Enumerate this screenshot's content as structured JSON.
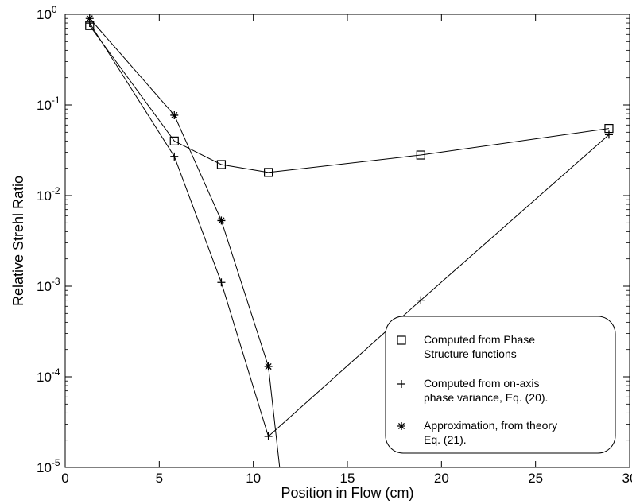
{
  "chart_data": {
    "type": "line",
    "title": "",
    "xlabel": "Position in Flow (cm)",
    "ylabel": "Relative Strehl Ratio",
    "xlim": [
      0,
      30
    ],
    "ylim": [
      1e-05,
      1
    ],
    "yscale": "log",
    "xticks": [
      {
        "value": 0,
        "label": "0"
      },
      {
        "value": 5,
        "label": "5"
      },
      {
        "value": 10,
        "label": "10"
      },
      {
        "value": 15,
        "label": "15"
      },
      {
        "value": 20,
        "label": "20"
      },
      {
        "value": 25,
        "label": "25"
      },
      {
        "value": 30,
        "label": "30"
      }
    ],
    "yticks": [
      {
        "value": 1,
        "base": "10",
        "exp": "0"
      },
      {
        "value": 0.1,
        "base": "10",
        "exp": "-1"
      },
      {
        "value": 0.01,
        "base": "10",
        "exp": "-2"
      },
      {
        "value": 0.001,
        "base": "10",
        "exp": "-3"
      },
      {
        "value": 0.0001,
        "base": "10",
        "exp": "-4"
      },
      {
        "value": 1e-05,
        "base": "10",
        "exp": "-5"
      }
    ],
    "grid": false,
    "legend_position": "bottom-right",
    "series": [
      {
        "name": "Computed from Phase Structure functions",
        "legend_lines": [
          "Computed from Phase",
          "Structure functions"
        ],
        "marker": "square",
        "x": [
          1.3,
          5.8,
          8.3,
          10.8,
          18.9,
          28.9
        ],
        "y": [
          0.75,
          0.04,
          0.022,
          0.018,
          0.028,
          0.055
        ]
      },
      {
        "name": "Computed from on-axis phase variance, Eq. (20).",
        "legend_lines": [
          "Computed from on-axis",
          "phase variance, Eq. (20)."
        ],
        "marker": "plus",
        "x": [
          1.3,
          5.8,
          8.3,
          10.8,
          18.9,
          28.9
        ],
        "y": [
          0.8,
          0.027,
          0.0011,
          2.2e-05,
          0.0007,
          0.047
        ]
      },
      {
        "name": "Approximation, from theory Eq. (21).",
        "legend_lines": [
          "Approximation, from theory",
          "Eq. (21)."
        ],
        "marker": "asterisk",
        "x": [
          1.3,
          5.8,
          8.3,
          10.8,
          11.4
        ],
        "y": [
          0.9,
          0.077,
          0.0053,
          0.00013,
          1e-05
        ],
        "marker_count": 4
      }
    ]
  }
}
